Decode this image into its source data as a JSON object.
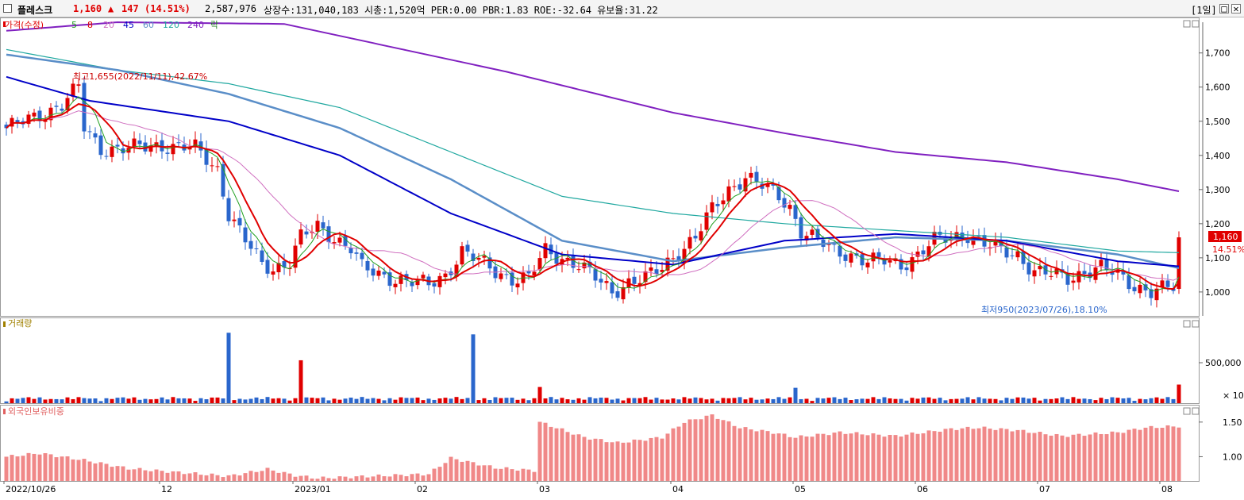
{
  "header": {
    "name": "플레스크",
    "price": "1,160",
    "change_arrow": "▲",
    "change": "147",
    "change_pct": "(14.51%)",
    "volume": "2,587,976",
    "stats": "상장수:131,040,183  시총:1,520억  PER:0.00  PBR:1.83  ROE:-32.64  유보율:31.22",
    "period": "[1일]",
    "win_buttons": [
      "□",
      "✕"
    ]
  },
  "colors": {
    "up": "#e00000",
    "down": "#2a66cc",
    "ma5": "#20a020",
    "ma8": "#e00000",
    "ma20": "#d070c0",
    "ma45": "#0000c8",
    "ma60": "#5a8ec8",
    "ma120": "#20a8a0",
    "ma240": "#8020c0"
  },
  "chart_data": [
    {
      "type": "candlestick",
      "legend_items": [
        {
          "label": "가격(수정)",
          "color": "#e00000"
        },
        {
          "label": "5",
          "color": "#20a020"
        },
        {
          "label": "8",
          "color": "#e00000"
        },
        {
          "label": "20",
          "color": "#d070c0"
        },
        {
          "label": "45",
          "color": "#0000c8"
        },
        {
          "label": "60",
          "color": "#5a8ec8"
        },
        {
          "label": "120",
          "color": "#20a8a0"
        },
        {
          "label": "240",
          "color": "#8020c0"
        },
        {
          "label": "락",
          "color": "#208020"
        }
      ],
      "ylim": [
        930,
        1790
      ],
      "y_ticks": [
        1000,
        1100,
        1200,
        1300,
        1400,
        1500,
        1600,
        1700
      ],
      "y_tick_labels": [
        "1,000",
        "1,100",
        "1,200",
        "1,300",
        "1,400",
        "1,500",
        "1,600",
        "1,700"
      ],
      "x_tick_labels": [
        "2022/10/26",
        "12",
        "2023/01",
        "02",
        "03",
        "04",
        "05",
        "06",
        "07",
        "08"
      ],
      "x_tick_index": [
        0,
        28,
        52,
        74,
        96,
        120,
        142,
        164,
        186,
        208
      ],
      "n_bars": 212,
      "annotation_high": "최고1,655(2022/11/11),42.67%",
      "annotation_low": "최저950(2023/07/26),18.10%",
      "price_tag": "1,160",
      "pct_tag": "14.51%",
      "price_anchors": [
        [
          0,
          1480
        ],
        [
          5,
          1510
        ],
        [
          10,
          1550
        ],
        [
          13,
          1600
        ],
        [
          14,
          1480
        ],
        [
          17,
          1420
        ],
        [
          22,
          1420
        ],
        [
          28,
          1430
        ],
        [
          34,
          1420
        ],
        [
          38,
          1360
        ],
        [
          40,
          1230
        ],
        [
          43,
          1150
        ],
        [
          46,
          1080
        ],
        [
          48,
          1070
        ],
        [
          51,
          1090
        ],
        [
          53,
          1160
        ],
        [
          56,
          1190
        ],
        [
          59,
          1160
        ],
        [
          62,
          1130
        ],
        [
          64,
          1070
        ],
        [
          67,
          1050
        ],
        [
          70,
          1040
        ],
        [
          73,
          1030
        ],
        [
          76,
          1020
        ],
        [
          79,
          1050
        ],
        [
          82,
          1120
        ],
        [
          85,
          1090
        ],
        [
          88,
          1060
        ],
        [
          91,
          1040
        ],
        [
          94,
          1040
        ],
        [
          97,
          1120
        ],
        [
          100,
          1100
        ],
        [
          103,
          1080
        ],
        [
          106,
          1040
        ],
        [
          109,
          1000
        ],
        [
          112,
          1030
        ],
        [
          115,
          1040
        ],
        [
          118,
          1070
        ],
        [
          121,
          1120
        ],
        [
          124,
          1160
        ],
        [
          127,
          1240
        ],
        [
          130,
          1300
        ],
        [
          133,
          1340
        ],
        [
          136,
          1310
        ],
        [
          139,
          1280
        ],
        [
          141,
          1250
        ],
        [
          143,
          1180
        ],
        [
          146,
          1150
        ],
        [
          149,
          1120
        ],
        [
          152,
          1110
        ],
        [
          155,
          1090
        ],
        [
          158,
          1090
        ],
        [
          161,
          1080
        ],
        [
          164,
          1110
        ],
        [
          167,
          1150
        ],
        [
          170,
          1160
        ],
        [
          173,
          1170
        ],
        [
          176,
          1140
        ],
        [
          179,
          1120
        ],
        [
          182,
          1110
        ],
        [
          185,
          1060
        ],
        [
          188,
          1050
        ],
        [
          191,
          1040
        ],
        [
          194,
          1060
        ],
        [
          197,
          1070
        ],
        [
          200,
          1050
        ],
        [
          203,
          1020
        ],
        [
          206,
          1000
        ],
        [
          209,
          1010
        ],
        [
          210,
          1013
        ],
        [
          211,
          1160
        ]
      ],
      "ma240_anchors": [
        [
          0,
          1765
        ],
        [
          20,
          1790
        ],
        [
          50,
          1785
        ],
        [
          70,
          1715
        ],
        [
          90,
          1645
        ],
        [
          120,
          1525
        ],
        [
          140,
          1465
        ],
        [
          160,
          1410
        ],
        [
          180,
          1380
        ],
        [
          200,
          1330
        ],
        [
          211,
          1295
        ]
      ],
      "ma120_anchors": [
        [
          0,
          1710
        ],
        [
          20,
          1650
        ],
        [
          40,
          1610
        ],
        [
          60,
          1540
        ],
        [
          80,
          1410
        ],
        [
          100,
          1280
        ],
        [
          120,
          1230
        ],
        [
          140,
          1200
        ],
        [
          160,
          1180
        ],
        [
          180,
          1160
        ],
        [
          200,
          1120
        ],
        [
          211,
          1115
        ]
      ],
      "ma60_anchors": [
        [
          0,
          1695
        ],
        [
          20,
          1650
        ],
        [
          40,
          1580
        ],
        [
          60,
          1480
        ],
        [
          80,
          1330
        ],
        [
          100,
          1150
        ],
        [
          120,
          1090
        ],
        [
          140,
          1130
        ],
        [
          160,
          1160
        ],
        [
          180,
          1150
        ],
        [
          200,
          1110
        ],
        [
          211,
          1070
        ]
      ],
      "ma45_anchors": [
        [
          0,
          1630
        ],
        [
          15,
          1560
        ],
        [
          40,
          1500
        ],
        [
          60,
          1400
        ],
        [
          80,
          1230
        ],
        [
          100,
          1110
        ],
        [
          120,
          1080
        ],
        [
          140,
          1150
        ],
        [
          160,
          1170
        ],
        [
          180,
          1150
        ],
        [
          200,
          1090
        ],
        [
          211,
          1075
        ]
      ]
    },
    {
      "type": "bar",
      "title": "거래량",
      "y_tick_labels": [
        "500,000"
      ],
      "y_ticks": [
        500000
      ],
      "ylim": [
        0,
        1000000
      ],
      "unit_label": "× 10",
      "spikes": [
        [
          40,
          870000
        ],
        [
          53,
          530000
        ],
        [
          84,
          850000
        ],
        [
          96,
          200000
        ],
        [
          142,
          190000
        ],
        [
          211,
          230000
        ]
      ]
    },
    {
      "type": "bar",
      "title": "외국인보유비중",
      "y_tick_labels": [
        "1.50",
        "1.00"
      ],
      "y_ticks": [
        1.5,
        1.0
      ],
      "ylim": [
        0.65,
        1.75
      ],
      "value_anchors": [
        [
          0,
          1.0
        ],
        [
          6,
          1.05
        ],
        [
          14,
          0.95
        ],
        [
          22,
          0.83
        ],
        [
          30,
          0.78
        ],
        [
          40,
          0.72
        ],
        [
          47,
          0.82
        ],
        [
          52,
          0.73
        ],
        [
          56,
          0.69
        ],
        [
          66,
          0.72
        ],
        [
          76,
          0.75
        ],
        [
          80,
          0.98
        ],
        [
          88,
          0.84
        ],
        [
          95,
          0.8
        ],
        [
          96,
          1.5
        ],
        [
          104,
          1.28
        ],
        [
          110,
          1.2
        ],
        [
          118,
          1.28
        ],
        [
          122,
          1.5
        ],
        [
          127,
          1.6
        ],
        [
          132,
          1.42
        ],
        [
          138,
          1.35
        ],
        [
          142,
          1.28
        ],
        [
          150,
          1.35
        ],
        [
          160,
          1.3
        ],
        [
          170,
          1.4
        ],
        [
          175,
          1.42
        ],
        [
          182,
          1.38
        ],
        [
          190,
          1.3
        ],
        [
          200,
          1.35
        ],
        [
          205,
          1.42
        ],
        [
          211,
          1.44
        ]
      ]
    }
  ]
}
